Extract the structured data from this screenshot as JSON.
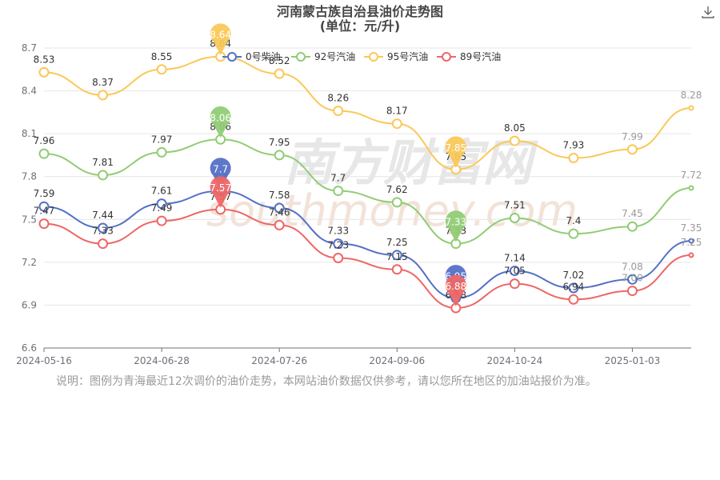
{
  "chart_data": {
    "type": "line",
    "title": "河南蒙古族自治县油价走势图",
    "subtitle": "(单位：元/升)",
    "xlabel": "",
    "ylabel": "",
    "ylim": [
      6.6,
      8.7
    ],
    "yticks": [
      "6.6",
      "6.9",
      "7.2",
      "7.5",
      "7.8",
      "8.1",
      "8.4",
      "8.7"
    ],
    "x_tick_labels": [
      {
        "i": 0,
        "label": "2024-05-16"
      },
      {
        "i": 2,
        "label": "2024-06-28"
      },
      {
        "i": 4,
        "label": "2024-07-26"
      },
      {
        "i": 6,
        "label": "2024-09-06"
      },
      {
        "i": 8,
        "label": "2024-10-24"
      },
      {
        "i": 10,
        "label": "2025-01-03"
      }
    ],
    "grid": true,
    "legend_position": "top-center",
    "series": [
      {
        "name": "0号柴油",
        "color": "#5470c6",
        "values": [
          7.59,
          7.44,
          7.61,
          7.7,
          7.58,
          7.33,
          7.25,
          6.95,
          7.14,
          7.02,
          7.08,
          7.35
        ],
        "label_texts": [
          "7.59",
          "7.44",
          "7.61",
          "7.7",
          "7.58",
          "7.33",
          "7.25",
          "6.95",
          "7.14",
          "7.02",
          "7.08",
          "7.35"
        ]
      },
      {
        "name": "92号汽油",
        "color": "#91cc75",
        "values": [
          7.96,
          7.81,
          7.97,
          8.06,
          7.95,
          7.7,
          7.62,
          7.33,
          7.51,
          7.4,
          7.45,
          7.72
        ],
        "label_texts": [
          "7.96",
          "7.81",
          "7.97",
          "8.06",
          "7.95",
          "7.7",
          "7.62",
          "7.33",
          "7.51",
          "7.4",
          "7.45",
          "7.72"
        ]
      },
      {
        "name": "95号汽油",
        "color": "#fac858",
        "values": [
          8.53,
          8.37,
          8.55,
          8.64,
          8.52,
          8.26,
          8.17,
          7.85,
          8.05,
          7.93,
          7.99,
          8.28
        ],
        "label_texts": [
          "8.53",
          "8.37",
          "8.55",
          "8.64",
          "8.52",
          "8.26",
          "8.17",
          "7.85",
          "8.05",
          "7.93",
          "7.99",
          "8.28"
        ]
      },
      {
        "name": "89号汽油",
        "color": "#ee6666",
        "values": [
          7.47,
          7.33,
          7.49,
          7.57,
          7.46,
          7.23,
          7.15,
          6.88,
          7.05,
          6.94,
          7.0,
          7.25
        ],
        "label_texts": [
          "7.47",
          "7.33",
          "7.49",
          "7.57",
          "7.46",
          "7.23",
          "7.15",
          "6.88",
          "7.05",
          "6.94",
          "7.00",
          "7.25"
        ]
      }
    ],
    "markers": [
      {
        "series": 0,
        "i": 3,
        "text": "7.7"
      },
      {
        "series": 0,
        "i": 7,
        "text": "6.95"
      },
      {
        "series": 1,
        "i": 3,
        "text": "8.06"
      },
      {
        "series": 1,
        "i": 7,
        "text": "7.33"
      },
      {
        "series": 2,
        "i": 3,
        "text": "8.64"
      },
      {
        "series": 2,
        "i": 7,
        "text": "7.85"
      },
      {
        "series": 3,
        "i": 3,
        "text": "7.57"
      },
      {
        "series": 3,
        "i": 7,
        "text": "6.88"
      }
    ],
    "watermark": "南方财富网",
    "watermark_sub": "southmoney.com"
  },
  "note": "说明：图例为青海最近12次调价的油价走势，本网站油价数据仅供参考，请以您所在地区的加油站报价为准。",
  "toolbar": {
    "download_icon": "download-icon"
  }
}
